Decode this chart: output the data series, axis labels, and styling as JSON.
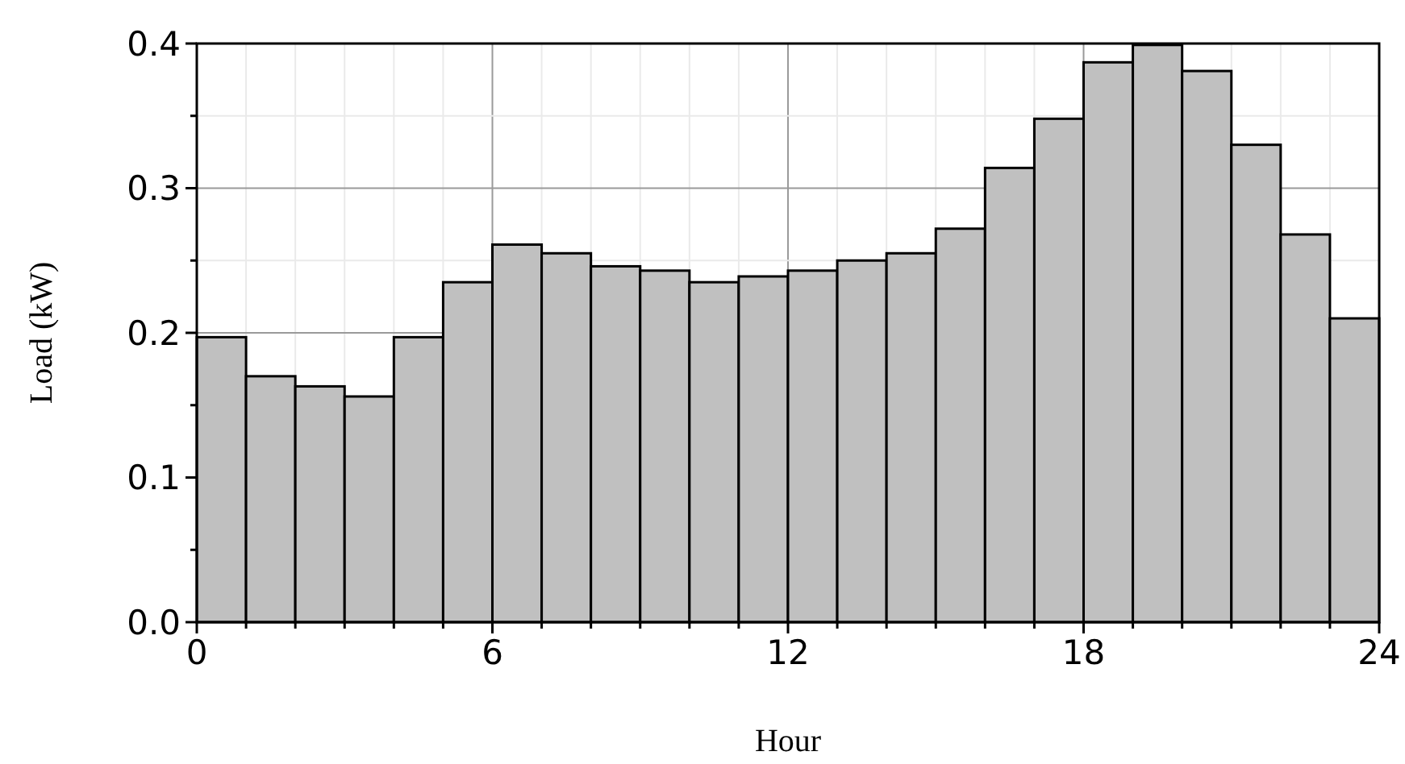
{
  "chart_data": {
    "type": "histogram",
    "xlabel": "Hour",
    "ylabel": "Load (kW)",
    "bins": [
      0,
      1,
      2,
      3,
      4,
      5,
      6,
      7,
      8,
      9,
      10,
      11,
      12,
      13,
      14,
      15,
      16,
      17,
      18,
      19,
      20,
      21,
      22,
      23,
      24
    ],
    "values": [
      0.197,
      0.17,
      0.163,
      0.156,
      0.197,
      0.235,
      0.261,
      0.255,
      0.246,
      0.243,
      0.235,
      0.239,
      0.243,
      0.25,
      0.255,
      0.272,
      0.314,
      0.348,
      0.387,
      0.399,
      0.381,
      0.33,
      0.268,
      0.21
    ],
    "color": "#c0c0c0",
    "xlim": [
      0,
      24
    ],
    "xticks": [
      0,
      {
        "value": 1,
        "label": null
      },
      {
        "value": 2,
        "label": null
      },
      {
        "value": 3,
        "label": null
      },
      {
        "value": 4,
        "label": null
      },
      {
        "value": 5,
        "label": null
      },
      6,
      {
        "value": 7,
        "label": null
      },
      {
        "value": 8,
        "label": null
      },
      {
        "value": 9,
        "label": null
      },
      {
        "value": 10,
        "label": null
      },
      {
        "value": 11,
        "label": null
      },
      12,
      {
        "value": 13,
        "label": null
      },
      {
        "value": 14,
        "label": null
      },
      {
        "value": 15,
        "label": null
      },
      {
        "value": 16,
        "label": null
      },
      {
        "value": 17,
        "label": null
      },
      18,
      {
        "value": 19,
        "label": null
      },
      {
        "value": 20,
        "label": null
      },
      {
        "value": 21,
        "label": null
      },
      {
        "value": 22,
        "label": null
      },
      {
        "value": 23,
        "label": null
      },
      24
    ],
    "ylim": [
      0,
      0.4
    ],
    "yticks": [
      {
        "value": 0,
        "label": "0.0"
      },
      {
        "value": 0.05,
        "label": null
      },
      0.1,
      {
        "value": 0.15,
        "label": null
      },
      0.2,
      {
        "value": 0.25,
        "label": null
      },
      0.3,
      {
        "value": 0.35,
        "label": null
      },
      0.4
    ],
    "grid": true
  }
}
